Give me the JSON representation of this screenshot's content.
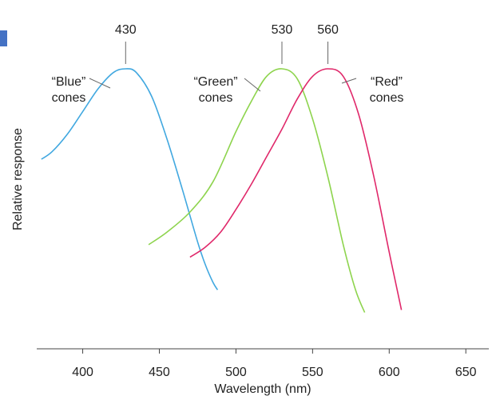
{
  "chart_data": {
    "type": "line",
    "xlabel": "Wavelength (nm)",
    "ylabel": "Relative response",
    "xlim": [
      370,
      665
    ],
    "ylim": [
      0,
      1
    ],
    "x_ticks": [
      "400",
      "450",
      "500",
      "550",
      "600",
      "650"
    ],
    "grid": false,
    "series": [
      {
        "name_lines": [
          "“Blue”",
          "cones"
        ],
        "peak_label": "430",
        "color": "#41a8e0",
        "x": [
          373,
          380,
          390,
          400,
          410,
          420,
          428,
          435,
          445,
          455,
          465,
          475,
          480,
          485,
          488
        ],
        "y": [
          0.64,
          0.67,
          0.74,
          0.83,
          0.92,
          0.985,
          1.0,
          0.985,
          0.89,
          0.72,
          0.52,
          0.31,
          0.22,
          0.15,
          0.12
        ]
      },
      {
        "name_lines": [
          "“Green”",
          "cones"
        ],
        "peak_label": "530",
        "color": "#8ed44e",
        "x": [
          443,
          455,
          470,
          485,
          500,
          510,
          520,
          530,
          540,
          550,
          560,
          570,
          578,
          584
        ],
        "y": [
          0.3,
          0.35,
          0.43,
          0.55,
          0.75,
          0.87,
          0.97,
          1.0,
          0.96,
          0.8,
          0.57,
          0.3,
          0.12,
          0.03
        ]
      },
      {
        "name_lines": [
          "“Red”",
          "cones"
        ],
        "peak_label": "560",
        "color": "#e0286a",
        "x": [
          470,
          480,
          490,
          500,
          510,
          520,
          530,
          540,
          550,
          560,
          570,
          580,
          590,
          600,
          608
        ],
        "y": [
          0.25,
          0.29,
          0.35,
          0.44,
          0.54,
          0.65,
          0.76,
          0.88,
          0.97,
          1.0,
          0.97,
          0.82,
          0.57,
          0.27,
          0.04
        ]
      }
    ]
  }
}
